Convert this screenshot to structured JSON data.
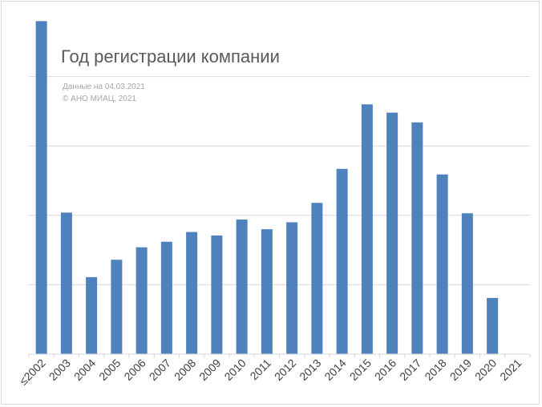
{
  "chart_data": {
    "type": "bar",
    "title": "Год регистрации компании",
    "subtitle_lines": [
      "Данные на 04.03.2021",
      "© АНО МИАЦ, 2021"
    ],
    "categories": [
      "≤2002",
      "2003",
      "2004",
      "2005",
      "2006",
      "2007",
      "2008",
      "2009",
      "2010",
      "2011",
      "2012",
      "2013",
      "2014",
      "2015",
      "2016",
      "2017",
      "2018",
      "2019",
      "2020",
      "2021"
    ],
    "values": [
      4.8,
      2.04,
      1.11,
      1.36,
      1.54,
      1.62,
      1.76,
      1.71,
      1.94,
      1.8,
      1.9,
      2.18,
      2.67,
      3.6,
      3.48,
      3.34,
      2.59,
      2.03,
      0.81,
      0
    ],
    "ylim": [
      0,
      5
    ],
    "y_gridlines": [
      1,
      2,
      3,
      4
    ],
    "y_tick_labels_shown": false,
    "grid": true,
    "legend": "none",
    "bar_color": "#4f81bd",
    "grid_color": "#d9d9d9"
  }
}
